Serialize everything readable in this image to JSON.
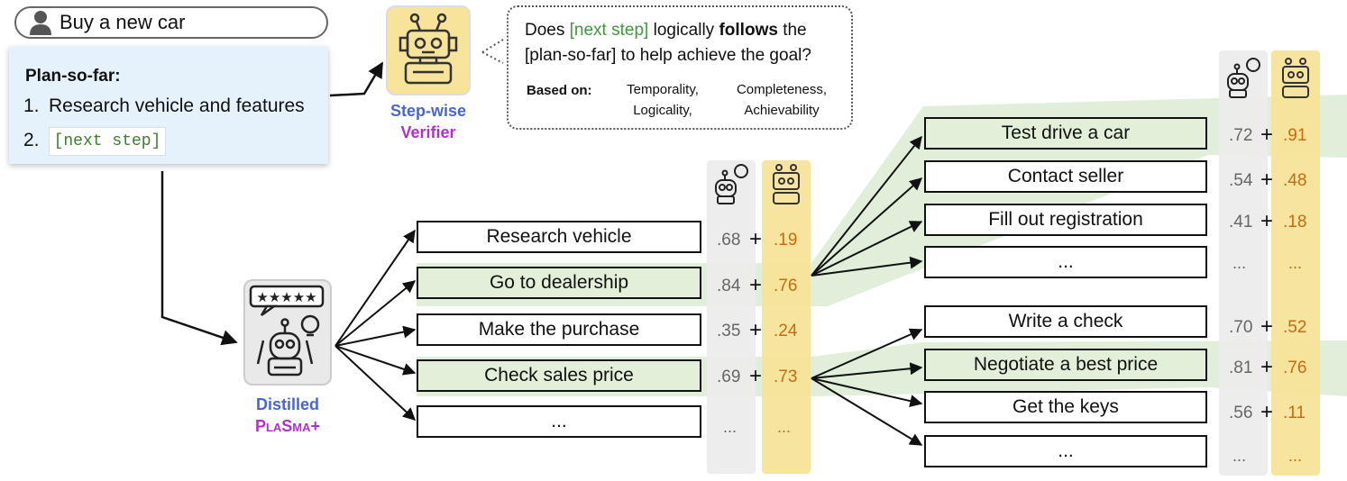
{
  "goal": {
    "text": "Buy a new car",
    "icon": "person-icon"
  },
  "plan": {
    "title": "Plan-so-far:",
    "items": [
      {
        "num": "1.",
        "text": "Research vehicle and features"
      },
      {
        "num": "2.",
        "text": "[next step]"
      }
    ]
  },
  "verifier": {
    "label_line1": "Step-wise",
    "label_line2": "Verifier",
    "icon": "robot-icon"
  },
  "bubble": {
    "q_part1": "Does ",
    "q_highlight": "[next step]",
    "q_part2": " logically ",
    "q_bold": "follows",
    "q_part3": " the [plan-so-far] to help achieve the goal?",
    "based_label": "Based on:",
    "crit_col1_line1": "Temporality,",
    "crit_col1_line2": "Logicality,",
    "crit_col2_line1": "Completeness,",
    "crit_col2_line2": "Achievability"
  },
  "student": {
    "label_line1": "Distilled",
    "label_line2": "PlaSma+",
    "icon": "robot-lightbulb-icon",
    "rating_icon": "five-star-rating-icon"
  },
  "level1": [
    {
      "text": "Research vehicle",
      "s1": ".68",
      "s2": ".19",
      "highlight": false
    },
    {
      "text": "Go to dealership",
      "s1": ".84",
      "s2": ".76",
      "highlight": true
    },
    {
      "text": "Make the purchase",
      "s1": ".35",
      "s2": ".24",
      "highlight": false
    },
    {
      "text": "Check sales price",
      "s1": ".69",
      "s2": ".73",
      "highlight": true
    },
    {
      "text": "...",
      "s1": "...",
      "s2": "...",
      "highlight": false
    }
  ],
  "level2_a": [
    {
      "text": "Test drive a car",
      "s1": ".72",
      "s2": ".91",
      "highlight": true
    },
    {
      "text": "Contact seller",
      "s1": ".54",
      "s2": ".48",
      "highlight": false
    },
    {
      "text": "Fill out registration",
      "s1": ".41",
      "s2": ".18",
      "highlight": false
    },
    {
      "text": "...",
      "s1": "...",
      "s2": "...",
      "highlight": false
    }
  ],
  "level2_b": [
    {
      "text": "Write a check",
      "s1": ".70",
      "s2": ".52",
      "highlight": false
    },
    {
      "text": "Negotiate a best price",
      "s1": ".81",
      "s2": ".76",
      "highlight": true
    },
    {
      "text": "Get the keys",
      "s1": ".56",
      "s2": ".11",
      "highlight": false
    },
    {
      "text": "...",
      "s1": "...",
      "s2": "...",
      "highlight": false
    }
  ],
  "plus_sign": "+",
  "colors": {
    "highlight_green": "#e3efd8",
    "band_green": "#d9ead0",
    "score_yellow_bg": "#f7e39a",
    "score_gray_bg": "#eeeeee",
    "score_orange": "#c86a10"
  }
}
